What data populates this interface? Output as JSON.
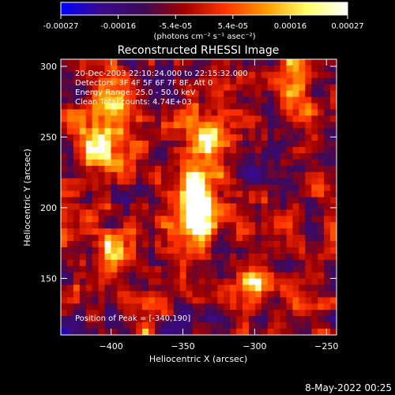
{
  "chart_data": {
    "type": "heatmap",
    "title": "Reconstructed RHESSI Image",
    "xlabel": "Heliocentric X (arcsec)",
    "ylabel": "Heliocentric Y (arcsec)",
    "xlim": [
      -435,
      -243
    ],
    "ylim": [
      110,
      305
    ],
    "xticks": [
      -400,
      -350,
      -300,
      -250
    ],
    "yticks": [
      150,
      200,
      250,
      300
    ],
    "colorbar": {
      "label": "(photons cm⁻² s⁻¹ asec⁻²)",
      "range": [
        -0.00027,
        0.00027
      ],
      "ticks": [
        "-0.00027",
        "-0.00016",
        "-5.4e-05",
        "5.4e-05",
        "0.00016",
        "0.00027"
      ],
      "stops": [
        "#0000ff",
        "#3a0a8a",
        "#3c0a5a",
        "#a00000",
        "#ff3300",
        "#ff9900",
        "#ffff66",
        "#ffffff"
      ]
    },
    "annotations": [
      "20-Dec-2003 22:10:24.000 to 22:15:32.000",
      "Detectors: 3F 4F 5F 6F 7F 8F, Att 0",
      "Energy Range: 25.0 - 50.0 keV",
      "Clean     Total counts: 4.74E+03"
    ],
    "peak_label": "Position of Peak = [-340,190]",
    "peak": [
      -340,
      190
    ],
    "bright_sources": [
      {
        "x": -340,
        "y": 190,
        "value": 0.00027
      },
      {
        "x": -335,
        "y": 245,
        "value": 0.00024
      },
      {
        "x": -348,
        "y": 205,
        "value": 0.00022
      },
      {
        "x": -410,
        "y": 240,
        "value": 0.00021
      },
      {
        "x": -395,
        "y": 165,
        "value": 0.0002
      },
      {
        "x": -400,
        "y": 275,
        "value": 0.00016
      },
      {
        "x": -300,
        "y": 145,
        "value": 0.00016
      },
      {
        "x": -270,
        "y": 290,
        "value": 0.00012
      }
    ]
  },
  "footer": {
    "timestamp": "8-May-2022 00:25"
  }
}
